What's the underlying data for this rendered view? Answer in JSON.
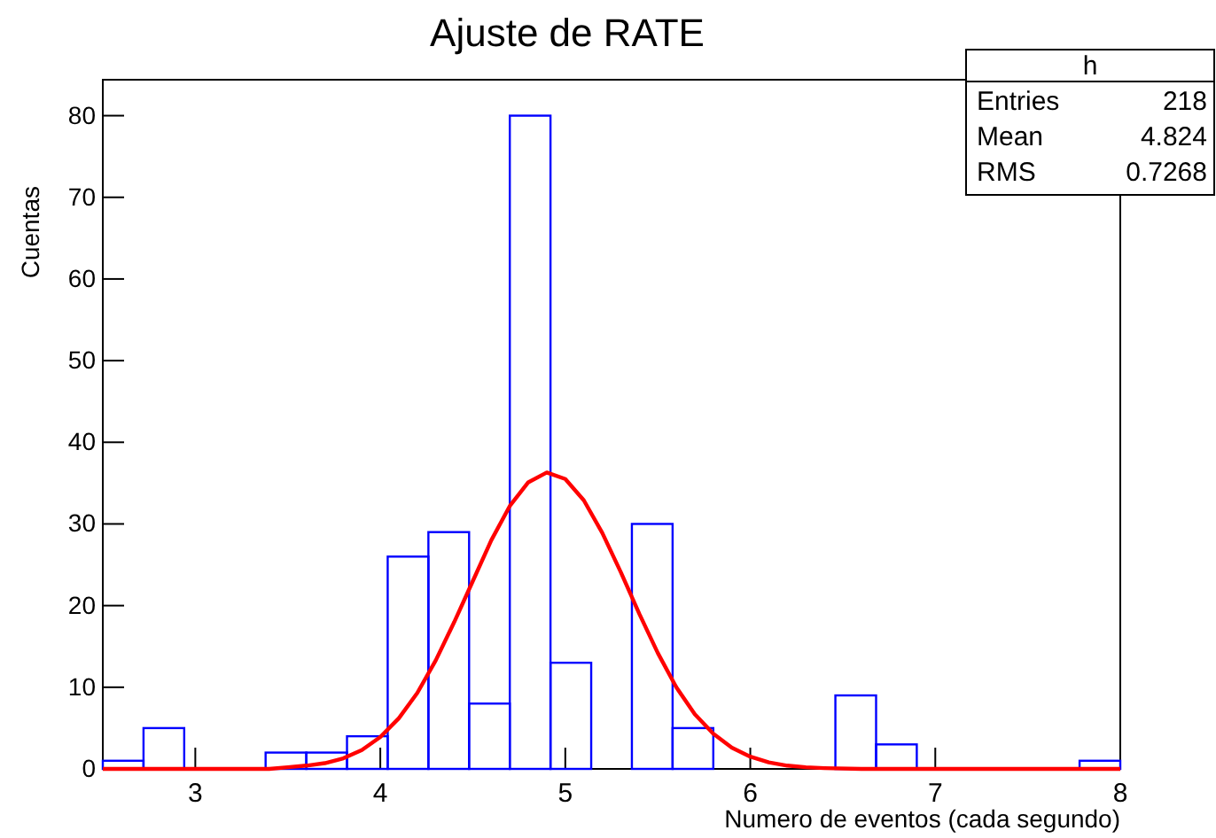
{
  "chart_data": {
    "type": "histogram",
    "title": "Ajuste de RATE",
    "xlabel": "Numero de eventos (cada segundo)",
    "ylabel": "Cuentas",
    "bins": [
      2.5,
      2.72,
      2.94,
      3.16,
      3.38,
      3.6,
      3.82,
      4.04,
      4.26,
      4.48,
      4.7,
      4.92,
      5.14,
      5.36,
      5.58,
      5.8,
      6.02,
      6.24,
      6.46,
      6.68,
      6.9,
      7.12,
      7.34,
      7.56,
      7.78,
      8.0
    ],
    "series": [
      {
        "color": "#0000ff",
        "values": [
          1,
          5,
          0,
          0,
          2,
          2,
          4,
          26,
          29,
          8,
          80,
          13,
          0,
          30,
          5,
          0,
          0,
          0,
          9,
          3,
          0,
          0,
          0,
          0,
          1
        ]
      },
      {
        "type": "line",
        "color": "#ff0000",
        "x": [
          2.5,
          2.8,
          3.1,
          3.4,
          3.5,
          3.6,
          3.7,
          3.8,
          3.9,
          4.0,
          4.1,
          4.2,
          4.3,
          4.4,
          4.5,
          4.6,
          4.7,
          4.8,
          4.9,
          5.0,
          5.1,
          5.2,
          5.3,
          5.4,
          5.5,
          5.6,
          5.7,
          5.8,
          5.9,
          6.0,
          6.1,
          6.2,
          6.3,
          6.4,
          6.6,
          7.0,
          7.5,
          8.0
        ],
        "values": [
          0,
          0,
          0,
          0,
          0.2,
          0.4,
          0.7,
          1.3,
          2.3,
          3.9,
          6.2,
          9.3,
          13.3,
          18.0,
          23.0,
          28.0,
          32.2,
          35.1,
          36.3,
          35.5,
          32.9,
          28.9,
          24.1,
          19.0,
          14.2,
          10.0,
          6.7,
          4.3,
          2.6,
          1.5,
          0.8,
          0.4,
          0.2,
          0.1,
          0,
          0,
          0,
          0
        ]
      }
    ],
    "xlim": [
      2.5,
      8
    ],
    "xticks": [
      3,
      4,
      5,
      6,
      7,
      8
    ],
    "ylim": [
      0,
      84.4
    ],
    "yticks": [
      0,
      10,
      20,
      30,
      40,
      50,
      60,
      70,
      80
    ],
    "grid": false,
    "annotations": [
      "h",
      "Entries",
      "218",
      "Mean",
      "4.824",
      "RMS",
      "0.7268"
    ]
  }
}
